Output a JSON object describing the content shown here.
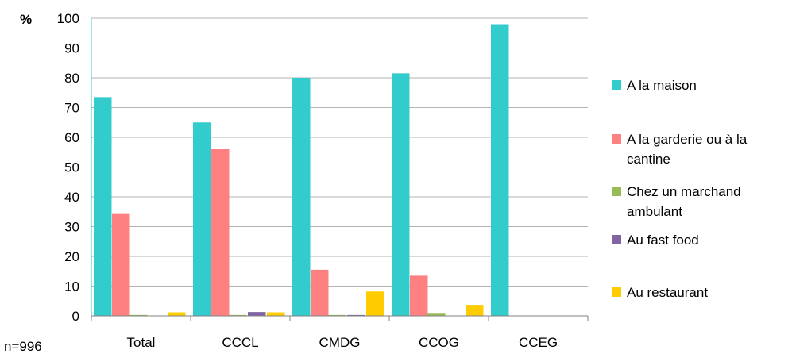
{
  "chart_data": {
    "type": "bar",
    "ylabel": "%",
    "ylim": [
      0,
      100
    ],
    "yticks": [
      0,
      10,
      20,
      30,
      40,
      50,
      60,
      70,
      80,
      90,
      100
    ],
    "categories": [
      "Total",
      "CCCL",
      "CMDG",
      "CCOG",
      "CCEG"
    ],
    "series": [
      {
        "name": "A la maison",
        "color": "#33cccc",
        "values": [
          73.5,
          65,
          80,
          81.5,
          98
        ]
      },
      {
        "name": "A la garderie ou à la cantine",
        "color": "#ff8080",
        "values": [
          34.5,
          56,
          15.5,
          13.5,
          0
        ]
      },
      {
        "name": "Chez un marchand ambulant",
        "color": "#99bb55",
        "values": [
          0.3,
          0.3,
          0.3,
          1,
          0
        ]
      },
      {
        "name": "Au fast food",
        "color": "#8064a2",
        "values": [
          0,
          1.3,
          0.3,
          0,
          0
        ]
      },
      {
        "name": "Au restaurant",
        "color": "#ffcc00",
        "values": [
          1.2,
          1.2,
          8.2,
          3.7,
          0
        ]
      }
    ],
    "legend_position": "right",
    "grid": true,
    "note": "n=996"
  }
}
